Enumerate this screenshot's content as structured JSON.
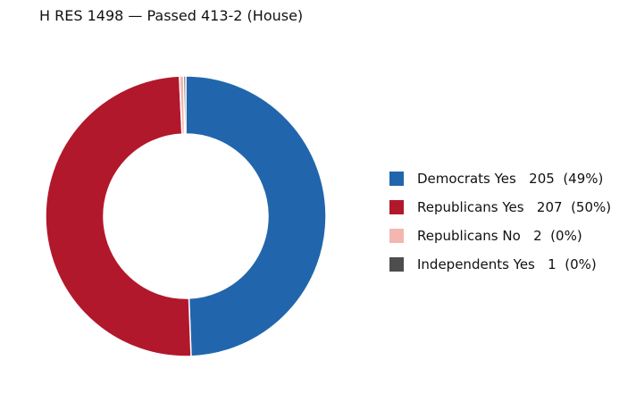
{
  "chart_data": {
    "type": "pie",
    "title": "H RES 1498 — Passed 413-2 (House)",
    "donut": true,
    "legend_position": "right",
    "slices": [
      {
        "label": "Democrats Yes   205  (49%)",
        "value": 205,
        "color": "#2166ac"
      },
      {
        "label": "Republicans Yes   207  (50%)",
        "value": 207,
        "color": "#b2182b"
      },
      {
        "label": "Republicans No   2  (0%)",
        "value": 2,
        "color": "#f4b6b0"
      },
      {
        "label": "Independents Yes   1  (0%)",
        "value": 1,
        "color": "#4d4d4d"
      }
    ]
  }
}
